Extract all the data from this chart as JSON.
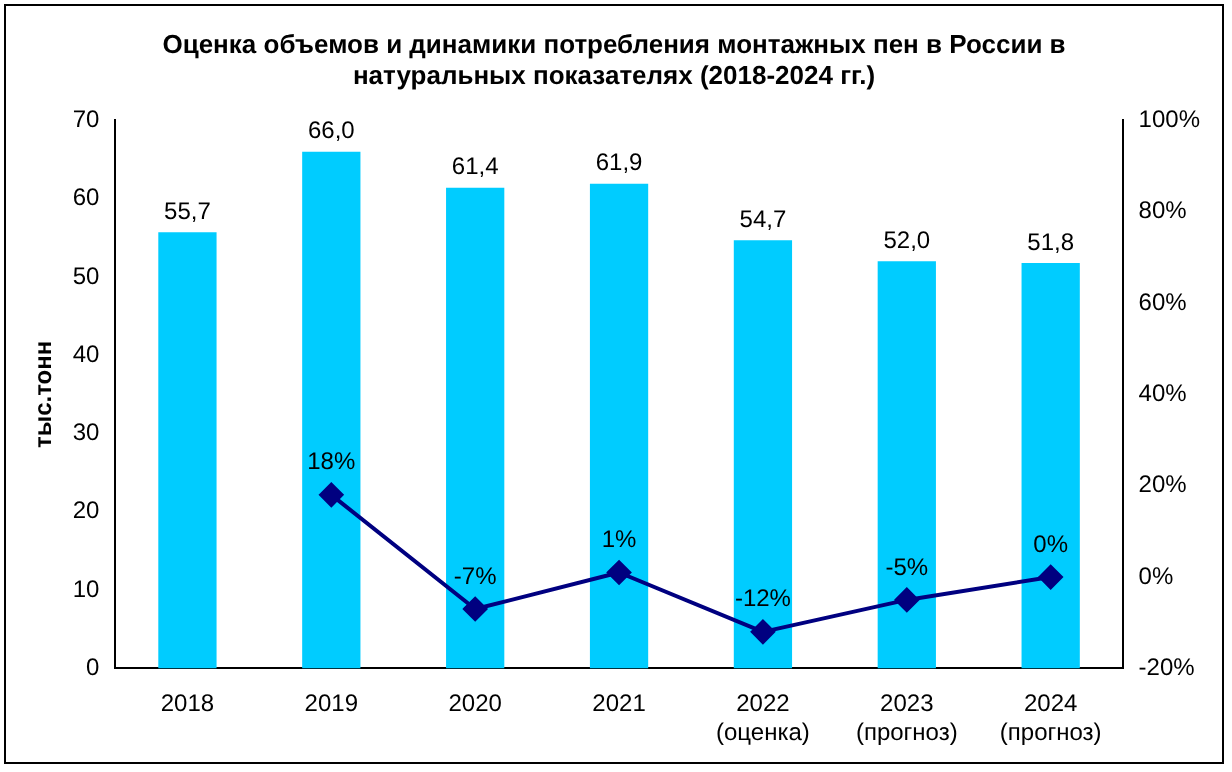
{
  "chart_data": {
    "type": "bar",
    "title": "Оценка объемов и динамики потребления монтажных пен в России в натуральных показателях (2018-2024 гг.)",
    "ylabel": "тыс.тонн",
    "categories": [
      "2018",
      "2019",
      "2020",
      "2021",
      "2022\n(оценка)",
      "2023\n(прогноз)",
      "2024\n(прогноз)"
    ],
    "series": [
      {
        "color": "#00ccff",
        "values": [
          55.7,
          66.0,
          61.4,
          61.9,
          54.7,
          52.0,
          51.8
        ],
        "value_labels": [
          "55,7",
          "66,0",
          "61,4",
          "61,9",
          "54,7",
          "52,0",
          "51,8"
        ]
      },
      {
        "type": "line",
        "axis": "y2",
        "color": "#000080",
        "marker": "diamond",
        "values": [
          null,
          18,
          -7,
          1,
          -12,
          -5,
          0
        ],
        "value_labels": [
          null,
          "18%",
          "-7%",
          "1%",
          "-12%",
          "-5%",
          "0%"
        ]
      }
    ],
    "ylim": [
      0,
      70
    ],
    "yticks": [
      0,
      10,
      20,
      30,
      40,
      50,
      60,
      70
    ],
    "y2lim": [
      -20,
      100
    ],
    "y2ticks": [
      {
        "value": -20,
        "label": "-20%"
      },
      {
        "value": 0,
        "label": "0%"
      },
      {
        "value": 20,
        "label": "20%"
      },
      {
        "value": 40,
        "label": "40%"
      },
      {
        "value": 60,
        "label": "60%"
      },
      {
        "value": 80,
        "label": "80%"
      },
      {
        "value": 100,
        "label": "100%"
      }
    ],
    "grid": false,
    "legend": false
  }
}
